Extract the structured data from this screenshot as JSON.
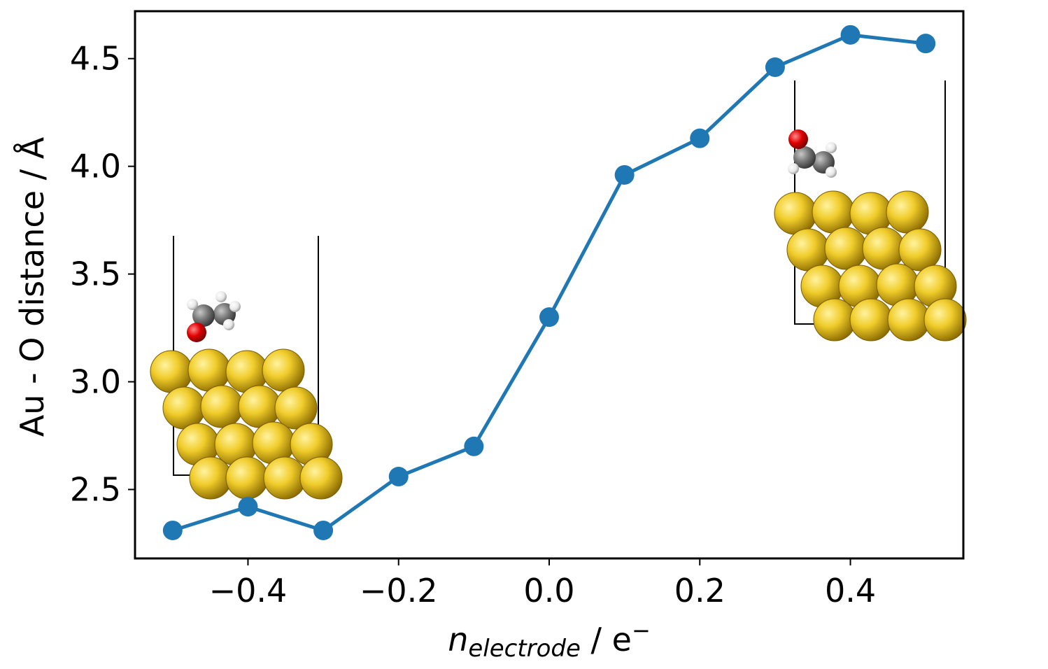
{
  "chart_data": {
    "type": "line",
    "title": "",
    "xlabel": {
      "italic": "n",
      "subscript": "electrode",
      "rest": " / e",
      "superscript": "−"
    },
    "ylabel": "Au - O distance / Å",
    "xlim": [
      -0.55,
      0.55
    ],
    "ylim": [
      2.18,
      4.72
    ],
    "xticks": [
      -0.4,
      -0.2,
      0.0,
      0.2,
      0.4
    ],
    "xtick_labels": [
      "−0.4",
      "−0.2",
      "0.0",
      "0.2",
      "0.4"
    ],
    "yticks": [
      2.5,
      3.0,
      3.5,
      4.0,
      4.5
    ],
    "ytick_labels": [
      "2.5",
      "3.0",
      "3.5",
      "4.0",
      "4.5"
    ],
    "grid": false,
    "series": [
      {
        "name": "Au-O distance",
        "color": "#1f77b4",
        "x": [
          -0.5,
          -0.4,
          -0.3,
          -0.2,
          -0.1,
          0.0,
          0.1,
          0.2,
          0.3,
          0.4,
          0.5
        ],
        "y": [
          2.31,
          2.42,
          2.31,
          2.56,
          2.7,
          3.3,
          3.96,
          4.13,
          4.46,
          4.61,
          4.57
        ]
      }
    ],
    "insets": [
      {
        "name": "left-inset",
        "description_icon": "gold-slab-with-adsorbed-molecule-near-surface"
      },
      {
        "name": "right-inset",
        "description_icon": "gold-slab-with-molecule-away-from-surface"
      }
    ]
  },
  "colors": {
    "line": "#1f77b4",
    "gold": "#e6c12b",
    "oxygen": "#e00000",
    "carbon": "#7a7a7a",
    "hydrogen": "#f2f2f2"
  }
}
